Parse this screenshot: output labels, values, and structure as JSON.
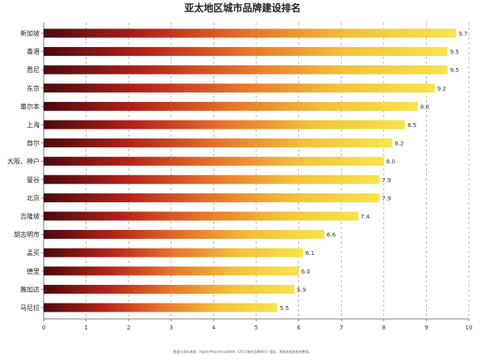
{
  "chart_data": {
    "type": "bar",
    "orientation": "horizontal",
    "title": "亚太地区城市品牌建设排名",
    "categories": [
      "新加坡",
      "香港",
      "悉尼",
      "东京",
      "墨尔本",
      "上海",
      "首尔",
      "大阪、神户",
      "曼谷",
      "北京",
      "吉隆坡",
      "胡志明市",
      "孟买",
      "德里",
      "雅加达",
      "马尼拉"
    ],
    "values": [
      9.7,
      9.5,
      9.5,
      9.2,
      8.8,
      8.5,
      8.2,
      8.0,
      7.9,
      7.9,
      7.4,
      6.6,
      6.1,
      6.0,
      5.9,
      5.5
    ],
    "value_labels": [
      "9.7",
      "9.5",
      "9.5",
      "9.2",
      "8.8",
      "8.5",
      "8.2",
      "8.0",
      "7.9",
      "7.9",
      "7.4",
      "6.6",
      "6.1",
      "6.0",
      "5.9",
      "5.5"
    ],
    "xlim": [
      0,
      10
    ],
    "x_ticks": [
      "0",
      "1",
      "2",
      "3",
      "4",
      "5",
      "6",
      "7",
      "8",
      "9",
      "10"
    ],
    "grid": "vertical dashed",
    "legend": "none",
    "gradient_colors": [
      "#4a0a0e",
      "#b5221a",
      "#e8732a",
      "#f2c23a",
      "#f8e44a"
    ],
    "footnote": "数据与资料来源：PublicAffairsAsia发布的《2013城市品牌排行》报告，图表由相关机构整理。"
  }
}
